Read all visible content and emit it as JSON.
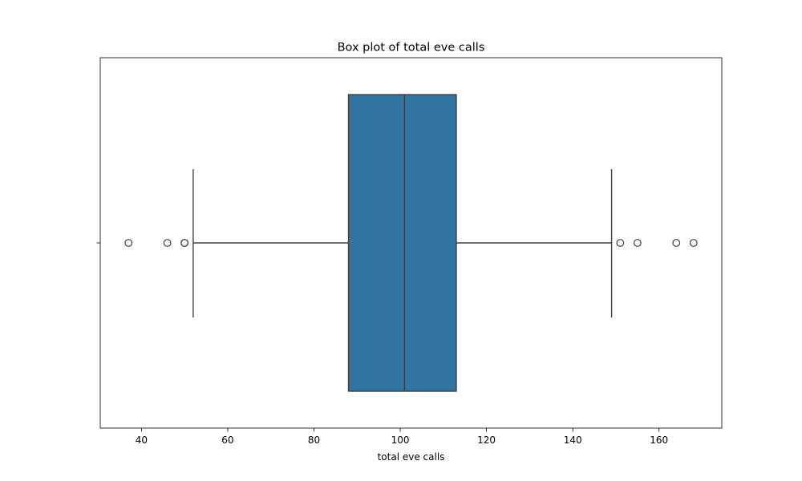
{
  "chart_data": {
    "type": "box",
    "title": "Box plot of total eve calls",
    "xlabel": "total eve calls",
    "ylabel": "",
    "xlim": [
      30.45,
      174.55
    ],
    "xticks": [
      40,
      60,
      80,
      100,
      120,
      140,
      160
    ],
    "orientation": "horizontal",
    "box_color": "#3274a1",
    "line_color": "#3f3f3f",
    "grid": false,
    "stats": {
      "whisker_low": 52,
      "q1": 88,
      "median": 101,
      "q3": 113,
      "whisker_high": 149
    },
    "outliers": [
      37,
      46,
      50,
      50,
      151,
      155,
      164,
      168
    ]
  }
}
